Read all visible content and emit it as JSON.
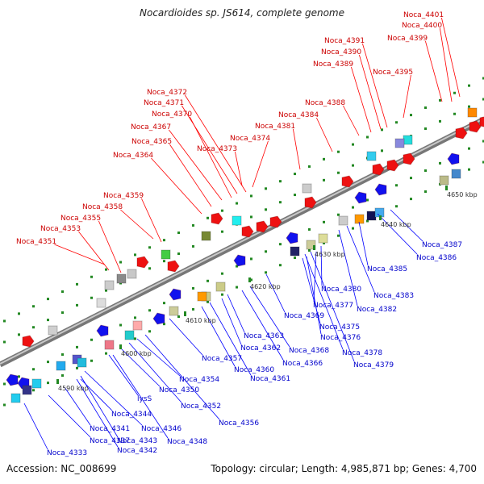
{
  "title": "Nocardioides sp. JS614, complete genome",
  "footer": {
    "accession": "Accession: NC_008699",
    "summary": "Topology: circular; Length: 4,985,871 bp; Genes: 4,700"
  },
  "colors": {
    "backbone": "#888888",
    "forward_label": "#cc0000",
    "reverse_label": "#0000cc",
    "forward_gene": "#ff0000",
    "reverse_gene": "#0000ee",
    "tick": "#228822"
  },
  "ticks": [
    "4590 kbp",
    "4600 kbp",
    "4610 kbp",
    "4620 kbp",
    "4630 kbp",
    "4640 kbp",
    "4650 kbp"
  ],
  "forward_labels": [
    "Noca_4351",
    "Noca_4353",
    "Noca_4355",
    "Noca_4358",
    "Noca_4359",
    "Noca_4364",
    "Noca_4365",
    "Noca_4367",
    "Noca_4370",
    "Noca_4371",
    "Noca_4372",
    "Noca_4373",
    "Noca_4374",
    "Noca_4381",
    "Noca_4384",
    "Noca_4388",
    "Noca_4389",
    "Noca_4390",
    "Noca_4391",
    "Noca_4395",
    "Noca_4399",
    "Noca_4400",
    "Noca_4401"
  ],
  "reverse_labels": [
    "Noca_4333",
    "Noca_4337",
    "Noca_4341",
    "Noca_4342",
    "Noca_4343",
    "Noca_4344",
    "Noca_4346",
    "lysS",
    "Noca_4348",
    "Noca_4350",
    "Noca_4352",
    "Noca_4354",
    "Noca_4356",
    "Noca_4357",
    "Noca_4360",
    "Noca_4361",
    "Noca_4362",
    "Noca_4363",
    "Noca_4366",
    "Noca_4368",
    "Noca_4369",
    "Noca_4375",
    "Noca_4376",
    "Noca_4377",
    "Noca_4378",
    "Noca_4379",
    "Noca_4380",
    "Noca_4382",
    "Noca_4383",
    "Noca_4385",
    "Noca_4386",
    "Noca_4387"
  ]
}
